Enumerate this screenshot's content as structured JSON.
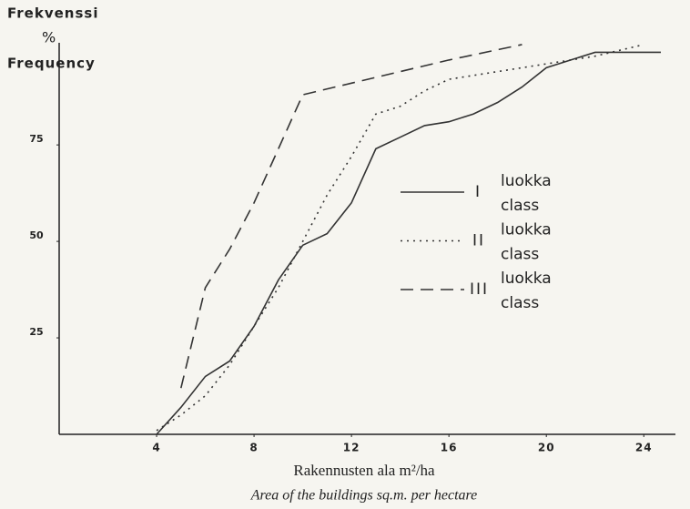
{
  "chart_data": {
    "type": "line",
    "y_label_lines": [
      "Frekvenssi",
      "%",
      "Frequency"
    ],
    "x_label": "Rakennusten ala m²/ha",
    "x_label_en": "Area of the buildings sq.m. per hectare",
    "legend_text": [
      "luokka",
      "class"
    ],
    "xlim": [
      0,
      25
    ],
    "ylim": [
      0,
      105
    ],
    "xticks": [
      4,
      8,
      12,
      16,
      20,
      24
    ],
    "yticks": [
      25,
      50,
      75
    ],
    "series": [
      {
        "name": "I",
        "color": "#333333",
        "dash": "solid",
        "x": [
          4,
          5,
          6,
          7,
          8,
          9,
          10,
          11,
          12,
          13,
          14,
          15,
          16,
          17,
          18,
          19,
          20,
          21,
          22,
          23,
          24.7
        ],
        "values": [
          0,
          7,
          15,
          19,
          28,
          40,
          49,
          52,
          60,
          74,
          77,
          80,
          81,
          83,
          86,
          90,
          95,
          97,
          99,
          99,
          99
        ]
      },
      {
        "name": "II",
        "color": "#333333",
        "dash": "dotted",
        "x": [
          4,
          5,
          6,
          7,
          8,
          9,
          10,
          11,
          12,
          13,
          14,
          15,
          16,
          18,
          20,
          22,
          24
        ],
        "values": [
          1,
          5,
          10,
          18,
          28,
          38,
          50,
          62,
          72,
          83,
          85,
          89,
          92,
          94,
          96,
          98,
          101
        ]
      },
      {
        "name": "III",
        "color": "#333333",
        "dash": "dashed",
        "x": [
          5,
          6,
          7,
          8,
          9,
          10,
          12,
          14,
          16,
          19
        ],
        "values": [
          12,
          38,
          48,
          60,
          74,
          88,
          91,
          94,
          97,
          101
        ]
      }
    ]
  }
}
